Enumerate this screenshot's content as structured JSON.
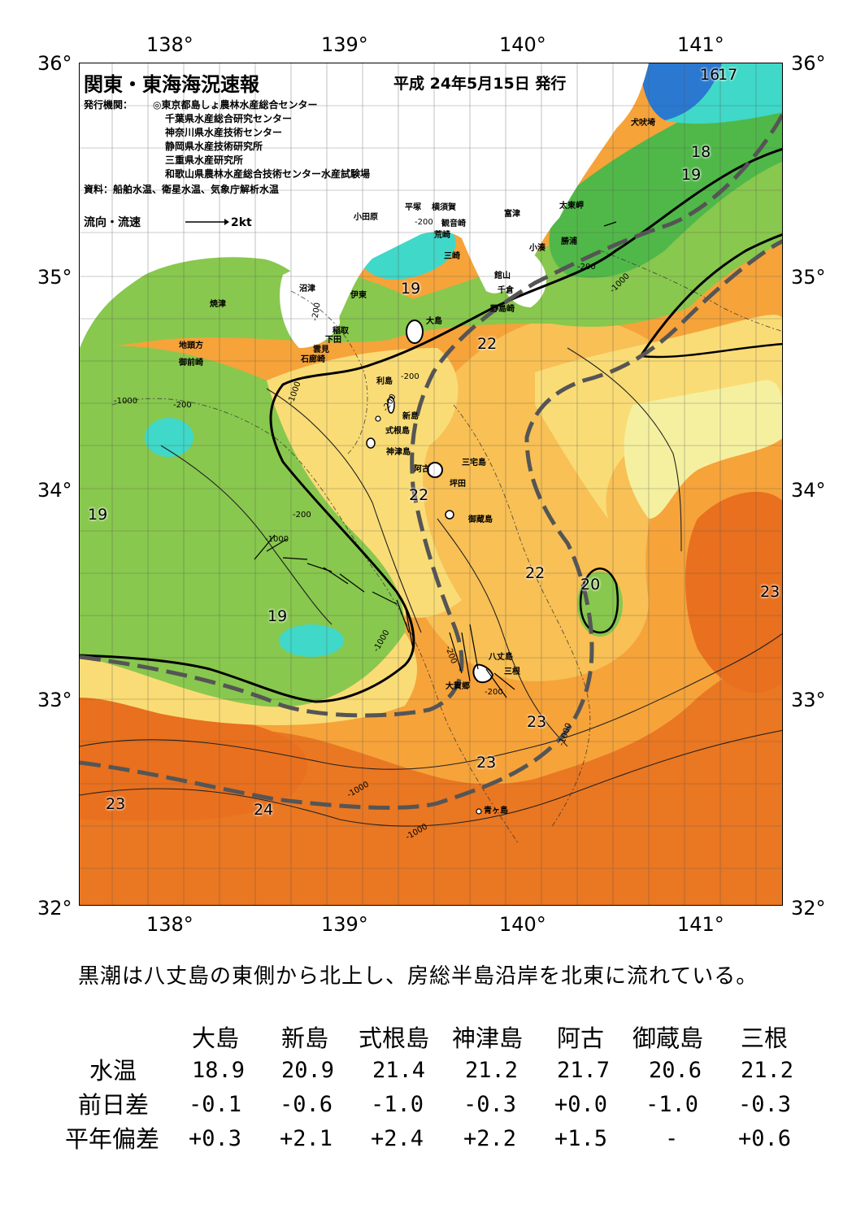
{
  "axes": {
    "lon_top": [
      "138°",
      "139°",
      "140°",
      "141°"
    ],
    "lon_bottom": [
      "138°",
      "139°",
      "140°",
      "141°"
    ],
    "lat_left": [
      "36°",
      "35°",
      "34°",
      "33°",
      "32°"
    ],
    "lat_right": [
      "36°",
      "35°",
      "34°",
      "33°",
      "32°"
    ]
  },
  "header": {
    "title": "関東・東海海況速報",
    "date": "平成  24年5月15日  発行",
    "publisher_label": "発行機関：",
    "publishers": [
      "◎東京都島しょ農林水産総合センター",
      "千葉県水産総合研究センター",
      "神奈川県水産技術センター",
      "静岡県水産技術研究所",
      "三重県水産研究所",
      "和歌山県農林水産総合技術センター水産試験場"
    ],
    "source": "資料：船舶水温、衛星水温、気象庁解析水温",
    "legend_label": "流向・流速",
    "legend_speed": "2kt"
  },
  "places": {
    "inubozaki": "犬吠埼",
    "taitomisaki": "太東岬",
    "katsuura": "勝浦",
    "kominato": "小湊",
    "futtsu": "富津",
    "yokosuka": "横須賀",
    "kannonzaki": "観音崎",
    "hiratsuka": "平塚",
    "odawara": "小田原",
    "arasaki": "荒崎",
    "misaki": "三崎",
    "tateyama": "館山",
    "chikura": "千倉",
    "nojimazaki": "野島崎",
    "numazu": "沼津",
    "ito": "伊東",
    "yaizu": "焼津",
    "inatori": "稲取",
    "shimoda": "下田",
    "kumomi": "雲見",
    "irozaki": "石廊崎",
    "jitokata": "地頭方",
    "omaezaki": "御前崎",
    "oshima": "大島",
    "toshima": "利島",
    "niijima": "新島",
    "shikinejima": "式根島",
    "kozushima": "神津島",
    "miyakejima": "三宅島",
    "ako": "阿古",
    "tsubota": "坪田",
    "mikurajima": "御蔵島",
    "hachijojima": "八丈島",
    "mine": "三根",
    "okago": "大賀郷",
    "aogashima": "青ヶ島"
  },
  "temp_labels": [
    "16",
    "17",
    "18",
    "19",
    "19",
    "22",
    "22",
    "19",
    "22",
    "20",
    "23",
    "19",
    "23",
    "23",
    "23",
    "24"
  ],
  "depth_labels": [
    "-200",
    "-200",
    "-1000",
    "-1000",
    "-200",
    "-200",
    "-200",
    "-1000",
    "-200",
    "-200",
    "-1000",
    "-1000",
    "-1000",
    "-200",
    "-1000",
    "-1000",
    "-200"
  ],
  "colors": {
    "t24": "#e8701e",
    "t23": "#f6a33a",
    "t22": "#f8c055",
    "t21": "#fadc76",
    "t20": "#f5f0a0",
    "t19": "#88c84e",
    "t18": "#50b848",
    "t17": "#40d8c8",
    "t16": "#2a78d0",
    "land": "#ffffff",
    "kuroshio": "#555555"
  },
  "summary": "黒潮は八丈島の東側から北上し、房総半島沿岸を北東に流れている。",
  "table": {
    "stations": [
      "大島",
      "新島",
      "式根島",
      "神津島",
      "阿古",
      "御蔵島",
      "三根"
    ],
    "rows": [
      {
        "label": "水温",
        "values": [
          "18.9",
          "20.9",
          "21.4",
          "21.2",
          "21.7",
          "20.6",
          "21.2"
        ]
      },
      {
        "label": "前日差",
        "values": [
          "-0.1",
          "-0.6",
          "-1.0",
          "-0.3",
          "+0.0",
          "-1.0",
          "-0.3"
        ]
      },
      {
        "label": "平年偏差",
        "values": [
          "+0.3",
          "+2.1",
          "+2.4",
          "+2.2",
          "+1.5",
          "-",
          "+0.6"
        ]
      }
    ]
  }
}
